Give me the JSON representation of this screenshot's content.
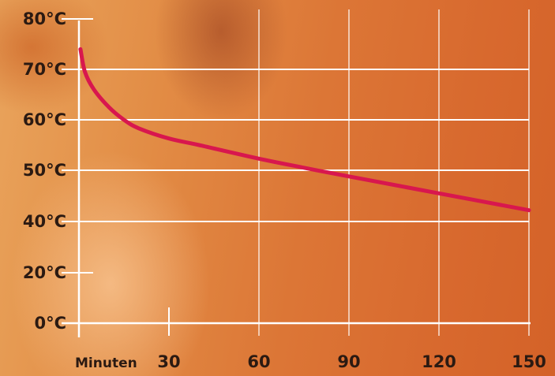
{
  "chart_data": {
    "type": "line",
    "title": "",
    "xlabel": "Minuten",
    "ylabel": "",
    "xlim": [
      0,
      150
    ],
    "ylim": [
      0,
      80
    ],
    "x_ticks": [
      {
        "value": 30,
        "label": "30"
      },
      {
        "value": 60,
        "label": "60"
      },
      {
        "value": 90,
        "label": "90"
      },
      {
        "value": 120,
        "label": "120"
      },
      {
        "value": 150,
        "label": "150"
      }
    ],
    "y_ticks": [
      {
        "value": 0,
        "label": "0°C"
      },
      {
        "value": 20,
        "label": "20°C"
      },
      {
        "value": 40,
        "label": "40°C"
      },
      {
        "value": 50,
        "label": "50°C"
      },
      {
        "value": 60,
        "label": "60°C"
      },
      {
        "value": 70,
        "label": "70°C"
      },
      {
        "value": 80,
        "label": "80°C"
      }
    ],
    "grid": true,
    "series": [
      {
        "color": "#d8174e",
        "x": [
          0.5,
          2,
          5,
          10,
          15,
          20,
          30,
          40,
          60,
          75,
          90,
          120,
          150
        ],
        "y": [
          74,
          69.5,
          66,
          62.5,
          60,
          58.3,
          56.3,
          55,
          52.3,
          50.5,
          48.8,
          45.5,
          42.2
        ]
      }
    ]
  }
}
